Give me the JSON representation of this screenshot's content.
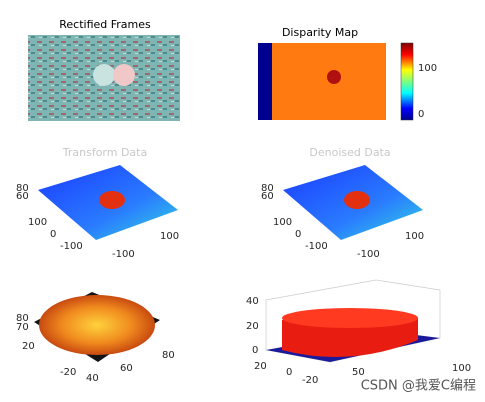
{
  "panels": [
    {
      "title": "Rectified Frames"
    },
    {
      "title": "Disparity Map",
      "colorbar_ticks": [
        "100",
        "0"
      ]
    },
    {
      "title": "Transform Data",
      "ticks": [
        "80",
        "60",
        "100",
        "0",
        "-100",
        "100",
        "-100"
      ]
    },
    {
      "title": "Denoised Data",
      "ticks": [
        "80",
        "60",
        "100",
        "0",
        "-100",
        "100",
        "-100"
      ]
    },
    {
      "ticks": [
        "80",
        "70",
        "20",
        "-20",
        "40",
        "60",
        "80"
      ]
    },
    {
      "ticks": [
        "40",
        "20",
        "0",
        "20",
        "0",
        "-20",
        "50",
        "100"
      ]
    }
  ],
  "watermark": "CSDN @我爱C编程"
}
